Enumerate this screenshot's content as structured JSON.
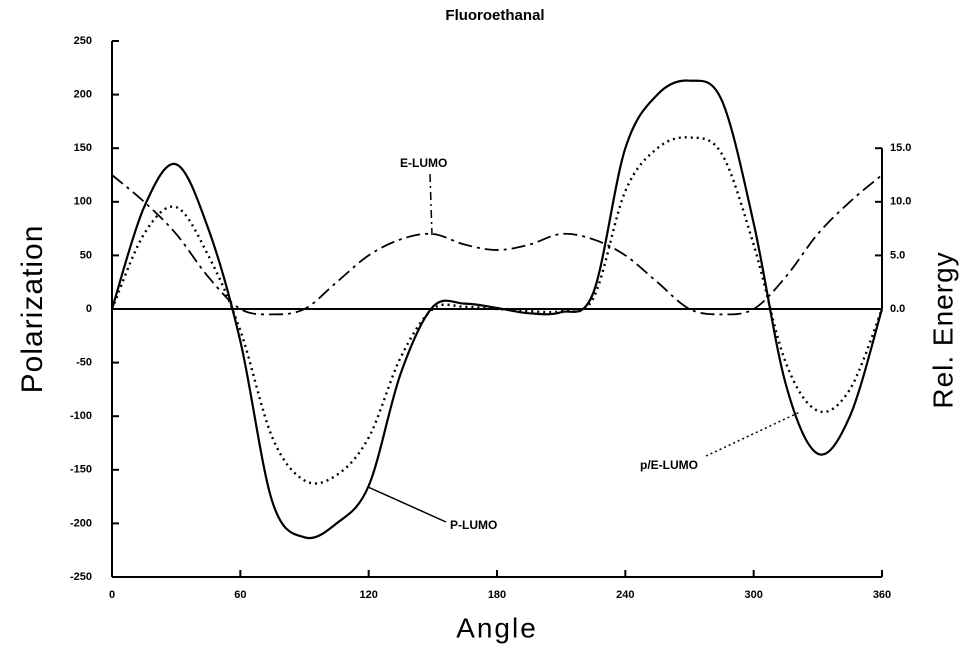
{
  "chart_data": {
    "type": "line",
    "title": "Fluoroethanal",
    "x_label": "Angle",
    "y_label": "Polarization",
    "y2_label": "Rel. Energy",
    "x": [
      0,
      15,
      30,
      45,
      60,
      75,
      90,
      105,
      120,
      135,
      150,
      165,
      180,
      195,
      210,
      225,
      240,
      255,
      270,
      285,
      300,
      315,
      330,
      345,
      360
    ],
    "series": [
      {
        "name": "P-LUMO",
        "color": "#000000",
        "values": [
          0,
          95,
          135,
          75,
          -30,
          -180,
          -213,
          -200,
          -165,
          -60,
          2,
          5,
          1,
          -4,
          -3,
          15,
          150,
          200,
          213,
          195,
          80,
          -70,
          -135,
          -100,
          0
        ]
      },
      {
        "name": "p/E-LUMO",
        "color": "#000000",
        "values": [
          0,
          70,
          95,
          50,
          -20,
          -120,
          -160,
          -155,
          -120,
          -45,
          0,
          2,
          0,
          -2,
          -2,
          10,
          110,
          150,
          160,
          145,
          60,
          -50,
          -95,
          -75,
          0
        ]
      },
      {
        "name": "E-LUMO",
        "color": "#000000",
        "axis": "y2",
        "values": [
          12.5,
          10,
          7,
          3,
          0,
          -0.5,
          0,
          2.5,
          5,
          6.5,
          7,
          6,
          5.5,
          6,
          7,
          6.5,
          5,
          2.5,
          0,
          -0.5,
          0,
          3,
          7,
          10,
          12.5
        ]
      }
    ],
    "xlim": [
      0,
      360
    ],
    "xticks": [
      0,
      60,
      120,
      180,
      240,
      300,
      360
    ],
    "ylim": [
      -250,
      250
    ],
    "yticks": [
      -250,
      -200,
      -150,
      -100,
      -50,
      0,
      50,
      100,
      150,
      200,
      250
    ],
    "y2lim": [
      -25,
      25
    ],
    "y2ticks": [
      {
        "value": 0,
        "label": "0.0"
      },
      {
        "value": 5,
        "label": "5.0"
      },
      {
        "value": 10,
        "label": "10.0"
      },
      {
        "value": 15,
        "label": "15.0"
      }
    ]
  }
}
